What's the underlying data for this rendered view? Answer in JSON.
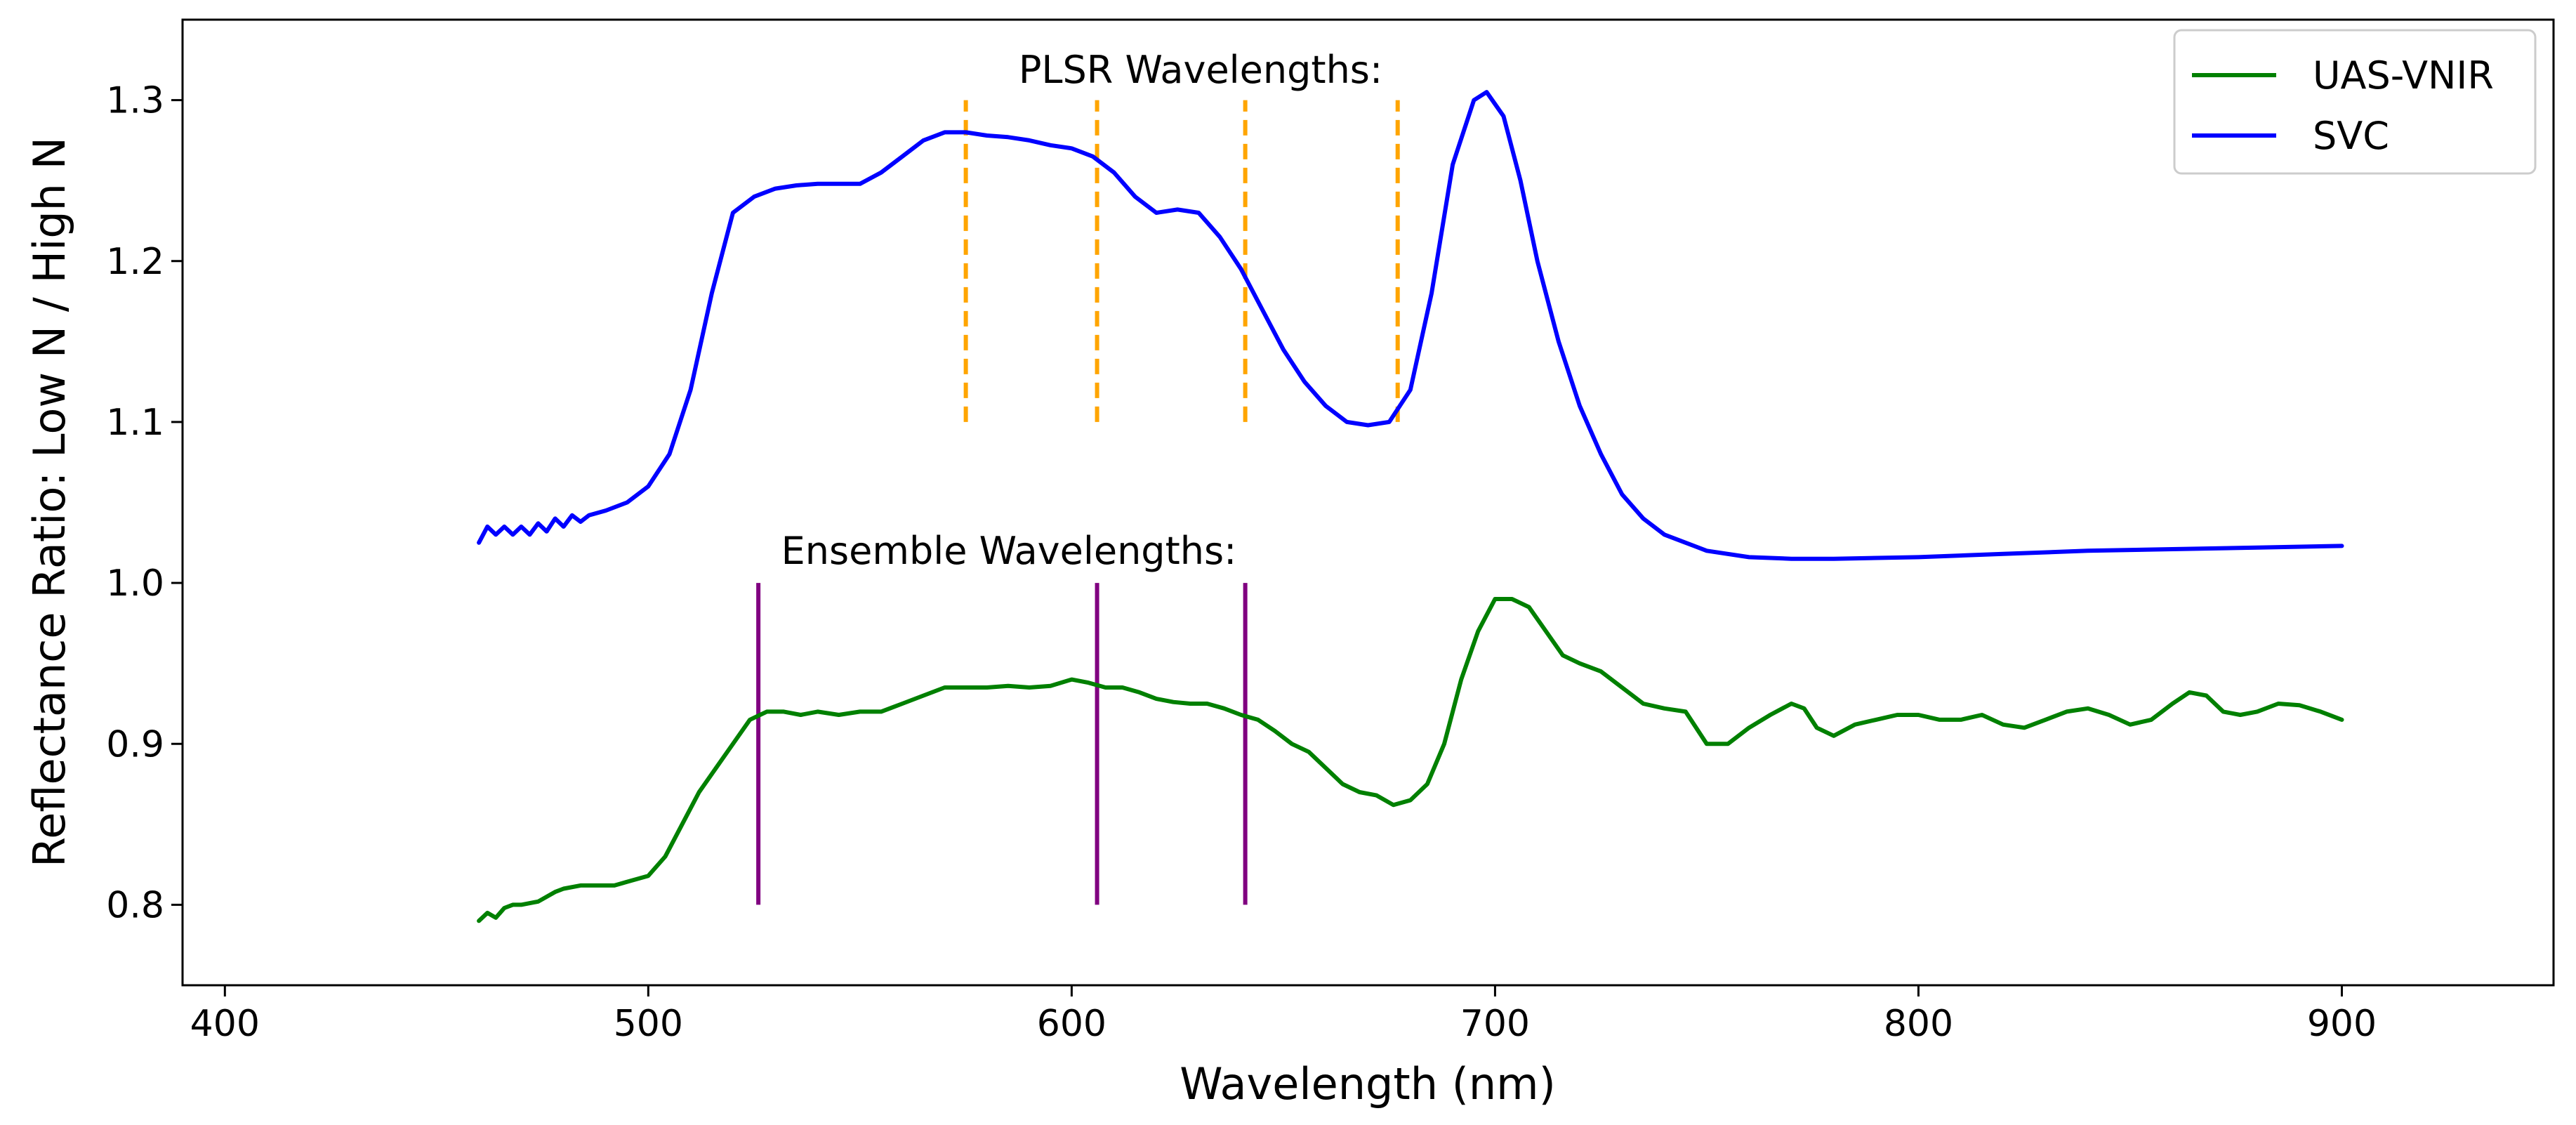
{
  "chart_data": {
    "type": "line",
    "title": "",
    "xlabel": "Wavelength (nm)",
    "ylabel": "Reflectance Ratio: Low N / High N",
    "xlim": [
      390,
      950
    ],
    "ylim": [
      0.75,
      1.35
    ],
    "xticks": [
      400,
      500,
      600,
      700,
      800,
      900
    ],
    "yticks": [
      0.8,
      0.9,
      1.0,
      1.1,
      1.2,
      1.3
    ],
    "xtick_labels": [
      "400",
      "500",
      "600",
      "700",
      "800",
      "900"
    ],
    "ytick_labels": [
      "0.8",
      "0.9",
      "1.0",
      "1.1",
      "1.2",
      "1.3"
    ],
    "grid": false,
    "legend_position": "top-right",
    "series": [
      {
        "name": "UAS-VNIR",
        "color": "#008000",
        "x": [
          460,
          462,
          464,
          466,
          468,
          470,
          474,
          478,
          480,
          484,
          488,
          492,
          496,
          500,
          504,
          508,
          512,
          516,
          520,
          524,
          528,
          532,
          536,
          540,
          545,
          550,
          555,
          560,
          565,
          570,
          575,
          580,
          585,
          590,
          595,
          600,
          604,
          608,
          612,
          616,
          620,
          624,
          628,
          632,
          636,
          640,
          644,
          648,
          652,
          656,
          660,
          664,
          668,
          672,
          676,
          680,
          684,
          688,
          692,
          696,
          700,
          704,
          708,
          712,
          716,
          720,
          725,
          730,
          735,
          740,
          745,
          750,
          755,
          760,
          765,
          770,
          773,
          776,
          780,
          785,
          790,
          795,
          800,
          805,
          810,
          815,
          820,
          825,
          830,
          835,
          840,
          845,
          850,
          855,
          860,
          864,
          868,
          872,
          876,
          880,
          885,
          890,
          895,
          900
        ],
        "values": [
          0.79,
          0.795,
          0.792,
          0.798,
          0.8,
          0.8,
          0.802,
          0.808,
          0.81,
          0.812,
          0.812,
          0.812,
          0.815,
          0.818,
          0.83,
          0.85,
          0.87,
          0.885,
          0.9,
          0.915,
          0.92,
          0.92,
          0.918,
          0.92,
          0.918,
          0.92,
          0.92,
          0.925,
          0.93,
          0.935,
          0.935,
          0.935,
          0.936,
          0.935,
          0.936,
          0.94,
          0.938,
          0.935,
          0.935,
          0.932,
          0.928,
          0.926,
          0.925,
          0.925,
          0.922,
          0.918,
          0.915,
          0.908,
          0.9,
          0.895,
          0.885,
          0.875,
          0.87,
          0.868,
          0.862,
          0.865,
          0.875,
          0.9,
          0.94,
          0.97,
          0.99,
          0.99,
          0.985,
          0.97,
          0.955,
          0.95,
          0.945,
          0.935,
          0.925,
          0.922,
          0.92,
          0.9,
          0.9,
          0.91,
          0.918,
          0.925,
          0.922,
          0.91,
          0.905,
          0.912,
          0.915,
          0.918,
          0.918,
          0.915,
          0.915,
          0.918,
          0.912,
          0.91,
          0.915,
          0.92,
          0.922,
          0.918,
          0.912,
          0.915,
          0.925,
          0.932,
          0.93,
          0.92,
          0.918,
          0.92,
          0.925,
          0.924,
          0.92,
          0.915
        ]
      },
      {
        "name": "SVC",
        "color": "#0000ff",
        "x": [
          460,
          462,
          464,
          466,
          468,
          470,
          472,
          474,
          476,
          478,
          480,
          482,
          484,
          486,
          490,
          495,
          500,
          505,
          510,
          515,
          520,
          525,
          530,
          535,
          540,
          545,
          550,
          555,
          560,
          565,
          570,
          575,
          580,
          585,
          590,
          595,
          600,
          605,
          610,
          615,
          620,
          625,
          630,
          635,
          640,
          645,
          650,
          655,
          660,
          665,
          670,
          675,
          680,
          685,
          690,
          695,
          698,
          702,
          706,
          710,
          715,
          720,
          725,
          730,
          735,
          740,
          745,
          750,
          760,
          770,
          780,
          800,
          820,
          840,
          860,
          880,
          900
        ],
        "values": [
          1.025,
          1.035,
          1.03,
          1.035,
          1.03,
          1.035,
          1.03,
          1.037,
          1.032,
          1.04,
          1.035,
          1.042,
          1.038,
          1.042,
          1.045,
          1.05,
          1.06,
          1.08,
          1.12,
          1.18,
          1.23,
          1.24,
          1.245,
          1.247,
          1.248,
          1.248,
          1.248,
          1.255,
          1.265,
          1.275,
          1.28,
          1.28,
          1.278,
          1.277,
          1.275,
          1.272,
          1.27,
          1.265,
          1.255,
          1.24,
          1.23,
          1.232,
          1.23,
          1.215,
          1.195,
          1.17,
          1.145,
          1.125,
          1.11,
          1.1,
          1.098,
          1.1,
          1.12,
          1.18,
          1.26,
          1.3,
          1.305,
          1.29,
          1.25,
          1.2,
          1.15,
          1.11,
          1.08,
          1.055,
          1.04,
          1.03,
          1.025,
          1.02,
          1.016,
          1.015,
          1.015,
          1.016,
          1.018,
          1.02,
          1.021,
          1.022,
          1.023
        ]
      }
    ],
    "annotations": {
      "plsr_label": "PLSR Wavelengths:",
      "plsr_color": "#ffa500",
      "plsr_wavelengths": [
        575,
        606,
        641,
        677
      ],
      "plsr_ymin": 1.1,
      "plsr_ymax": 1.3,
      "ensemble_label": "Ensemble Wavelengths:",
      "ensemble_color": "#800080",
      "ensemble_wavelengths": [
        526,
        606,
        641
      ],
      "ensemble_ymin": 0.8,
      "ensemble_ymax": 1.0
    }
  }
}
